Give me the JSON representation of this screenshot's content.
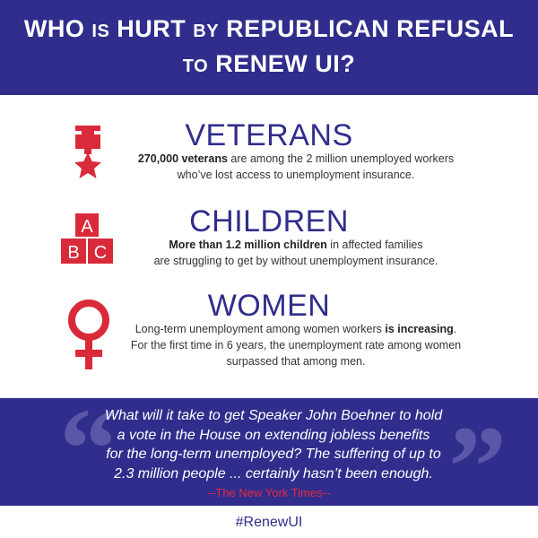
{
  "header": {
    "line1": [
      {
        "text": "WHO ",
        "small": false
      },
      {
        "text": "IS",
        "small": true
      },
      {
        "text": " HURT ",
        "small": false
      },
      {
        "text": "BY",
        "small": true
      },
      {
        "text": " REPUBLICAN REFUSAL",
        "small": false
      }
    ],
    "line2": [
      {
        "text": "TO",
        "small": true
      },
      {
        "text": " RENEW UI?",
        "small": false
      }
    ]
  },
  "sections": [
    {
      "heading": "VETERANS",
      "icon": "medal-icon",
      "body": [
        [
          {
            "text": "270,000 veterans",
            "bold": true
          },
          {
            "text": " are among the 2 million unemployed workers",
            "bold": false
          }
        ],
        [
          {
            "text": "who’ve lost access to unemployment insurance.",
            "bold": false
          }
        ]
      ]
    },
    {
      "heading": "CHILDREN",
      "icon": "abc-blocks-icon",
      "body": [
        [
          {
            "text": "More than 1.2 million children",
            "bold": true
          },
          {
            "text": " in affected families",
            "bold": false
          }
        ],
        [
          {
            "text": "are struggling to get by without unemployment insurance.",
            "bold": false
          }
        ]
      ]
    },
    {
      "heading": "WOMEN",
      "icon": "female-symbol-icon",
      "body": [
        [
          {
            "text": "Long-term unemployment among women workers ",
            "bold": false
          },
          {
            "text": "is increasing",
            "bold": true
          },
          {
            "text": ".",
            "bold": false
          }
        ],
        [
          {
            "text": "For the first time in 6 years, the unemployment rate among women",
            "bold": false
          }
        ],
        [
          {
            "text": "surpassed that among men.",
            "bold": false
          }
        ]
      ]
    }
  ],
  "icon_letters": {
    "a": "A",
    "b": "B",
    "c": "C"
  },
  "quote": {
    "lines": [
      "What will it take to get Speaker John Boehner to hold",
      "a vote in the House on extending jobless benefits",
      "for the long-term unemployed? The suffering of up to",
      "2.3 million people ... certainly hasn’t been enough."
    ],
    "open_mark": "“",
    "close_mark": "”",
    "source": "--The New York Times--"
  },
  "hashtag": "#RenewUI",
  "colors": {
    "brand_blue": "#302d8c",
    "icon_red": "#d92a3a",
    "source_red": "#e8283c"
  }
}
